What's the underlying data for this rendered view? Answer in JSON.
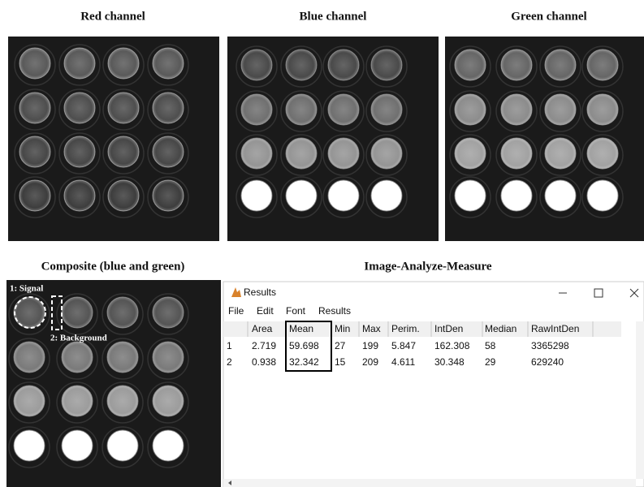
{
  "panels": [
    {
      "title": "Red channel"
    },
    {
      "title": "Blue channel"
    },
    {
      "title": "Green channel"
    },
    {
      "title": "Composite (blue and green)"
    }
  ],
  "annotations": {
    "signal": "1: Signal",
    "background": "2: Background"
  },
  "results_section_title": "Image-Analyze-Measure",
  "window": {
    "title": "Results",
    "menu": [
      "File",
      "Edit",
      "Font",
      "Results"
    ],
    "table": {
      "columns": [
        "Area",
        "Mean",
        "Min",
        "Max",
        "Perim.",
        "IntDen",
        "Median",
        "RawIntDen"
      ],
      "rows": [
        [
          "1",
          "2.719",
          "59.698",
          "27",
          "199",
          "5.847",
          "162.308",
          "58",
          "3365298"
        ],
        [
          "2",
          "0.938",
          "32.342",
          "15",
          "209",
          "4.611",
          "30.348",
          "29",
          "629240"
        ]
      ]
    }
  }
}
